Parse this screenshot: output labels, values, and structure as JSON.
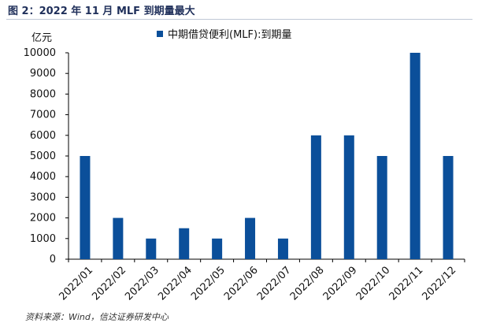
{
  "figure": {
    "title": "图 2：2022 年 11 月 MLF 到期量最大",
    "unit_label": "亿元",
    "source": "资料来源：Wind，信达证券研发中心"
  },
  "colors": {
    "bar": "#0b4f9a",
    "axis": "#000000"
  },
  "chart_data": {
    "type": "bar",
    "categories": [
      "2022/01",
      "2022/02",
      "2022/03",
      "2022/04",
      "2022/05",
      "2022/06",
      "2022/07",
      "2022/08",
      "2022/09",
      "2022/10",
      "2022/11",
      "2022/12"
    ],
    "series": [
      {
        "name": "中期借贷便利(MLF):到期量",
        "values": [
          5000,
          2000,
          1000,
          1500,
          1000,
          2000,
          1000,
          6000,
          6000,
          5000,
          10000,
          5000
        ]
      }
    ],
    "ylabel": "亿元",
    "xlabel": "",
    "ylim": [
      0,
      10000
    ],
    "yticks": [
      0,
      1000,
      2000,
      3000,
      4000,
      5000,
      6000,
      7000,
      8000,
      9000,
      10000
    ],
    "grid": false,
    "legend": "top-center"
  }
}
